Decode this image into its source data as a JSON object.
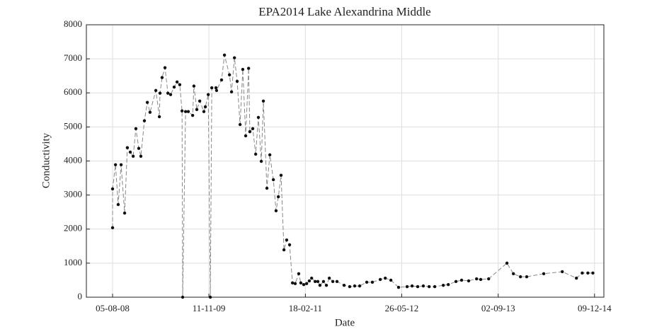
{
  "chart_data": {
    "type": "line",
    "title": "EPA2014 Lake Alexandrina Middle",
    "xlabel": "Date",
    "ylabel": "Conductivity",
    "x": [
      "05-08-08",
      "05-08-08",
      "19-08-08",
      "01-09-08",
      "15-09-08",
      "02-10-08",
      "15-10-08",
      "29-10-08",
      "12-11-08",
      "25-11-08",
      "09-12-08",
      "19-12-08",
      "05-01-09",
      "19-01-09",
      "01-02-09",
      "01-03-09",
      "18-03-09",
      "21-03-09",
      "31-03-09",
      "14-04-09",
      "28-04-09",
      "11-05-09",
      "28-05-09",
      "11-06-09",
      "24-06-09",
      "05-07-09",
      "08-07-09",
      "22-07-09",
      "04-08-09",
      "25-08-09",
      "31-08-09",
      "14-09-09",
      "28-09-09",
      "18-10-09",
      "25-10-09",
      "08-11-09",
      "18-11-09",
      "25-11-09",
      "15-12-09",
      "18-12-09",
      "11-01-10",
      "25-01-10",
      "18-02-10",
      "28-02-10",
      "14-03-10",
      "27-03-10",
      "10-04-10",
      "23-04-10",
      "07-05-10",
      "21-05-10",
      "27-05-10",
      "10-06-10",
      "24-06-10",
      "07-07-10",
      "21-07-10",
      "31-07-10",
      "17-08-10",
      "31-08-10",
      "17-09-10",
      "30-09-10",
      "11-10-10",
      "24-10-10",
      "07-11-10",
      "20-11-10",
      "04-12-10",
      "18-12-10",
      "31-12-10",
      "17-01-11",
      "27-01-11",
      "10-02-11",
      "24-02-11",
      "09-03-11",
      "20-03-11",
      "06-04-11",
      "19-04-11",
      "29-04-11",
      "16-05-11",
      "30-05-11",
      "13-06-11",
      "30-06-11",
      "20-07-11",
      "23-08-11",
      "19-09-11",
      "13-10-11",
      "06-11-11",
      "10-12-11",
      "06-01-12",
      "13-02-12",
      "08-03-12",
      "04-04-12",
      "11-05-12",
      "21-06-12",
      "15-07-12",
      "11-08-12",
      "07-09-12",
      "05-10-12",
      "01-11-12",
      "12-12-12",
      "05-01-13",
      "11-02-13",
      "10-03-13",
      "13-04-13",
      "21-05-13",
      "10-06-13",
      "18-07-13",
      "14-10-13",
      "14-11-13",
      "18-12-13",
      "17-01-14",
      "09-04-14",
      "07-07-14",
      "13-09-14",
      "11-10-14",
      "07-11-14",
      "01-12-14"
    ],
    "series": [
      {
        "color": "#888888",
        "marker_color": "#111111",
        "values": [
          2040,
          3180,
          3890,
          2720,
          3890,
          2470,
          4390,
          4260,
          4140,
          4950,
          4370,
          4140,
          5180,
          5720,
          5430,
          6070,
          5300,
          5990,
          6450,
          6740,
          5990,
          5950,
          6170,
          6320,
          6240,
          5470,
          0,
          5450,
          5450,
          5340,
          6200,
          5510,
          5760,
          5450,
          5590,
          5950,
          0,
          6150,
          6150,
          6070,
          6380,
          7110,
          6530,
          6030,
          7030,
          6340,
          5070,
          6690,
          4740,
          6720,
          4860,
          4950,
          4200,
          5280,
          3990,
          5760,
          3200,
          4180,
          3450,
          2540,
          2950,
          3580,
          1390,
          1680,
          1540,
          420,
          400,
          690,
          420,
          370,
          400,
          480,
          560,
          460,
          460,
          350,
          460,
          350,
          560,
          460,
          460,
          350,
          310,
          330,
          330,
          440,
          440,
          520,
          560,
          500,
          290,
          310,
          330,
          310,
          330,
          310,
          310,
          350,
          370,
          460,
          500,
          480,
          540,
          520,
          540,
          1000,
          690,
          600,
          600,
          690,
          750,
          560,
          710,
          710,
          710
        ]
      }
    ],
    "xlim": [
      "01-04-08",
      "23-01-15"
    ],
    "xticks": [
      "05-08-08",
      "11-11-09",
      "18-02-11",
      "26-05-12",
      "02-09-13",
      "09-12-14"
    ],
    "ylim": [
      0,
      8000
    ],
    "yticks": [
      0,
      1000,
      2000,
      3000,
      4000,
      5000,
      6000,
      7000,
      8000
    ],
    "grid": true
  }
}
